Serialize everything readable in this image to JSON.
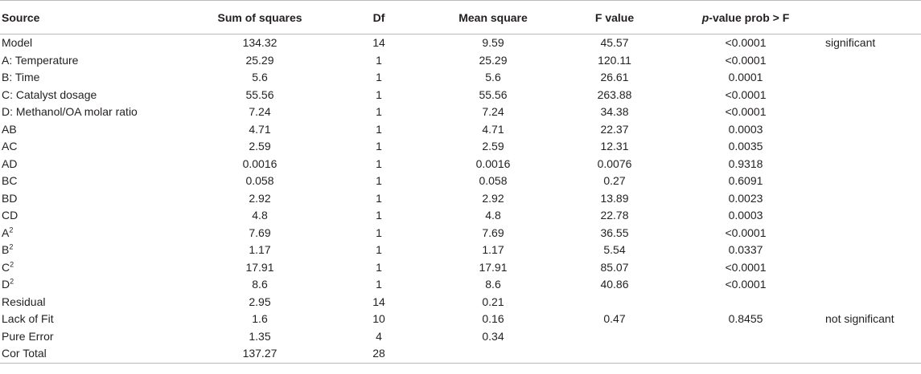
{
  "table": {
    "headers": {
      "source": "Source",
      "ss": "Sum of squares",
      "df": "Df",
      "ms": "Mean square",
      "f": "F value",
      "p_prefix": "p",
      "p_suffix": "-value prob > F",
      "note": ""
    },
    "rows": [
      {
        "source": "Model",
        "sup": "",
        "ss": "134.32",
        "df": "14",
        "ms": "9.59",
        "f": "45.57",
        "p": "<0.0001",
        "note": "significant"
      },
      {
        "source": "A: Temperature",
        "sup": "",
        "ss": "25.29",
        "df": "1",
        "ms": "25.29",
        "f": "120.11",
        "p": "<0.0001",
        "note": ""
      },
      {
        "source": "B: Time",
        "sup": "",
        "ss": "5.6",
        "df": "1",
        "ms": "5.6",
        "f": "26.61",
        "p": "0.0001",
        "note": ""
      },
      {
        "source": "C: Catalyst dosage",
        "sup": "",
        "ss": "55.56",
        "df": "1",
        "ms": "55.56",
        "f": "263.88",
        "p": "<0.0001",
        "note": ""
      },
      {
        "source": "D: Methanol/OA molar ratio",
        "sup": "",
        "ss": "7.24",
        "df": "1",
        "ms": "7.24",
        "f": "34.38",
        "p": "<0.0001",
        "note": ""
      },
      {
        "source": "AB",
        "sup": "",
        "ss": "4.71",
        "df": "1",
        "ms": "4.71",
        "f": "22.37",
        "p": "0.0003",
        "note": ""
      },
      {
        "source": "AC",
        "sup": "",
        "ss": "2.59",
        "df": "1",
        "ms": "2.59",
        "f": "12.31",
        "p": "0.0035",
        "note": ""
      },
      {
        "source": "AD",
        "sup": "",
        "ss": "0.0016",
        "df": "1",
        "ms": "0.0016",
        "f": "0.0076",
        "p": "0.9318",
        "note": ""
      },
      {
        "source": "BC",
        "sup": "",
        "ss": "0.058",
        "df": "1",
        "ms": "0.058",
        "f": "0.27",
        "p": "0.6091",
        "note": ""
      },
      {
        "source": "BD",
        "sup": "",
        "ss": "2.92",
        "df": "1",
        "ms": "2.92",
        "f": "13.89",
        "p": "0.0023",
        "note": ""
      },
      {
        "source": "CD",
        "sup": "",
        "ss": "4.8",
        "df": "1",
        "ms": "4.8",
        "f": "22.78",
        "p": "0.0003",
        "note": ""
      },
      {
        "source": "A",
        "sup": "2",
        "ss": "7.69",
        "df": "1",
        "ms": "7.69",
        "f": "36.55",
        "p": "<0.0001",
        "note": ""
      },
      {
        "source": "B",
        "sup": "2",
        "ss": "1.17",
        "df": "1",
        "ms": "1.17",
        "f": "5.54",
        "p": "0.0337",
        "note": ""
      },
      {
        "source": "C",
        "sup": "2",
        "ss": "17.91",
        "df": "1",
        "ms": "17.91",
        "f": "85.07",
        "p": "<0.0001",
        "note": ""
      },
      {
        "source": "D",
        "sup": "2",
        "ss": "8.6",
        "df": "1",
        "ms": "8.6",
        "f": "40.86",
        "p": "<0.0001",
        "note": ""
      },
      {
        "source": "Residual",
        "sup": "",
        "ss": "2.95",
        "df": "14",
        "ms": "0.21",
        "f": "",
        "p": "",
        "note": ""
      },
      {
        "source": "Lack of Fit",
        "sup": "",
        "ss": "1.6",
        "df": "10",
        "ms": "0.16",
        "f": "0.47",
        "p": "0.8455",
        "note": "not significant"
      },
      {
        "source": "Pure Error",
        "sup": "",
        "ss": "1.35",
        "df": "4",
        "ms": "0.34",
        "f": "",
        "p": "",
        "note": ""
      },
      {
        "source": "Cor Total",
        "sup": "",
        "ss": "137.27",
        "df": "28",
        "ms": "",
        "f": "",
        "p": "",
        "note": ""
      }
    ]
  }
}
